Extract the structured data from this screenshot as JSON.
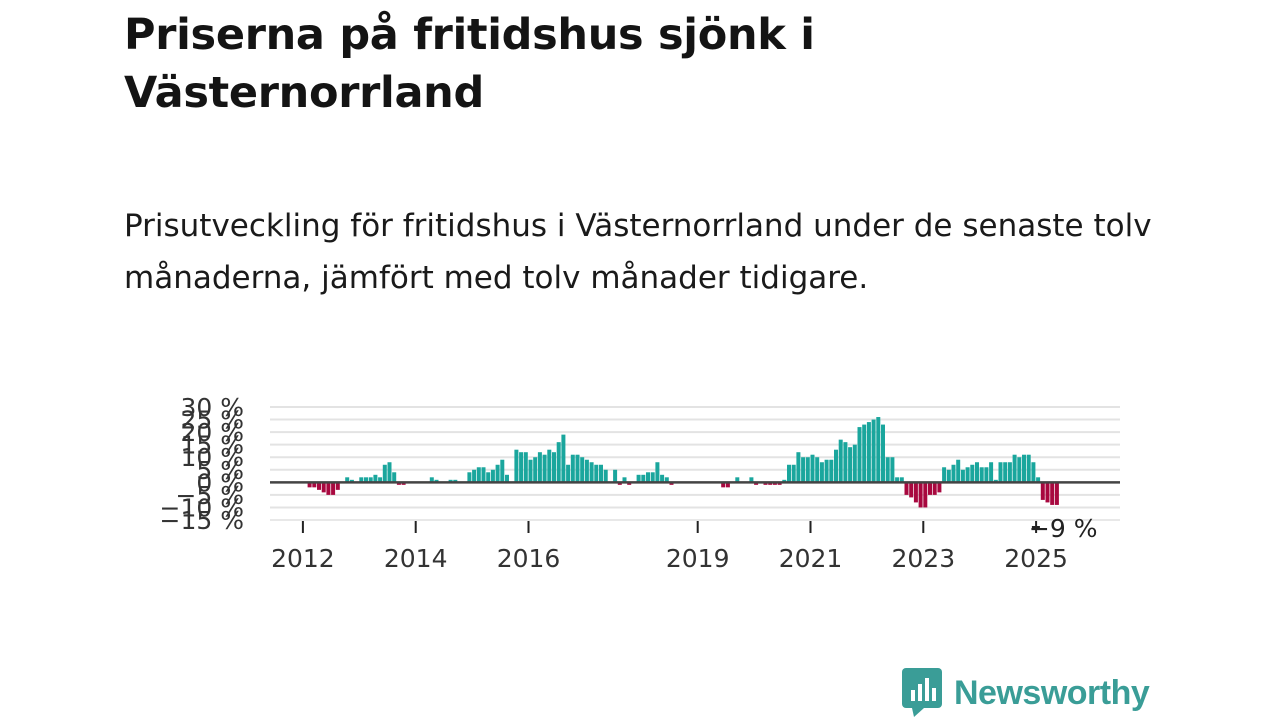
{
  "header": {
    "title": "Priserna på fritidshus sjönk i Västernorrland",
    "subtitle": "Prisutveckling för fritidshus i Västernorrland under de senaste tolv månaderna, jämfört med tolv månader tidigare."
  },
  "brand": {
    "name": "Newsworthy",
    "icon": "newsworthy-logo-icon",
    "color": "#3a9d97"
  },
  "colors": {
    "positive": "#1aa69d",
    "negative": "#a8083f",
    "zero_line": "#444444",
    "grid": "#e3e3e3"
  },
  "chart_data": {
    "type": "bar",
    "title": "Priserna på fritidshus sjönk i Västernorrland",
    "ylabel": "",
    "xlabel": "",
    "ylim": [
      -15,
      30
    ],
    "y_ticks": [
      -15,
      -10,
      -5,
      0,
      5,
      10,
      15,
      20,
      25,
      30
    ],
    "y_tick_labels": [
      "−15 %",
      "−10 %",
      "−5 %",
      "0 %",
      "5 %",
      "10 %",
      "15 %",
      "20 %",
      "25 %",
      "30 %"
    ],
    "x_start": "2011-06",
    "x_ticks": [
      {
        "label": "2012",
        "year": 2012
      },
      {
        "label": "2014",
        "year": 2014
      },
      {
        "label": "2016",
        "year": 2016
      },
      {
        "label": "2019",
        "year": 2019
      },
      {
        "label": "2021",
        "year": 2021
      },
      {
        "label": "2023",
        "year": 2023
      },
      {
        "label": "2025",
        "year": 2025
      }
    ],
    "last_value_label": "−9 %",
    "values": [
      null,
      null,
      null,
      null,
      null,
      null,
      null,
      null,
      -2,
      -2,
      -3,
      -4,
      -5,
      -5,
      -3,
      0,
      2,
      1,
      0,
      2,
      2,
      2,
      3,
      2,
      7,
      8,
      4,
      -1,
      -1,
      null,
      0,
      0,
      0,
      0,
      2,
      1,
      0,
      0,
      1,
      1,
      0,
      0,
      4,
      5,
      6,
      6,
      4,
      5,
      7,
      9,
      3,
      0,
      13,
      12,
      12,
      9,
      10,
      12,
      11,
      13,
      12,
      16,
      19,
      7,
      11,
      11,
      10,
      9,
      8,
      7,
      7,
      5,
      0,
      5,
      -1,
      2,
      -1,
      0,
      3,
      3,
      4,
      4,
      8,
      3,
      2,
      -1,
      0,
      0,
      0,
      0,
      0,
      0,
      0,
      0,
      0,
      0,
      -2,
      -2,
      0,
      2,
      0,
      0,
      2,
      -1,
      0,
      -1,
      -1,
      -1,
      -1,
      1,
      7,
      7,
      12,
      10,
      10,
      11,
      10,
      8,
      9,
      9,
      13,
      17,
      16,
      14,
      15,
      22,
      23,
      24,
      25,
      26,
      23,
      10,
      10,
      2,
      2,
      -5,
      -6,
      -8,
      -10,
      -10,
      -5,
      -5,
      -4,
      6,
      5,
      7,
      9,
      5,
      6,
      7,
      8,
      6,
      6,
      8,
      1,
      8,
      8,
      8,
      11,
      10,
      11,
      11,
      8,
      2,
      -7,
      -8,
      -9,
      -9
    ]
  }
}
